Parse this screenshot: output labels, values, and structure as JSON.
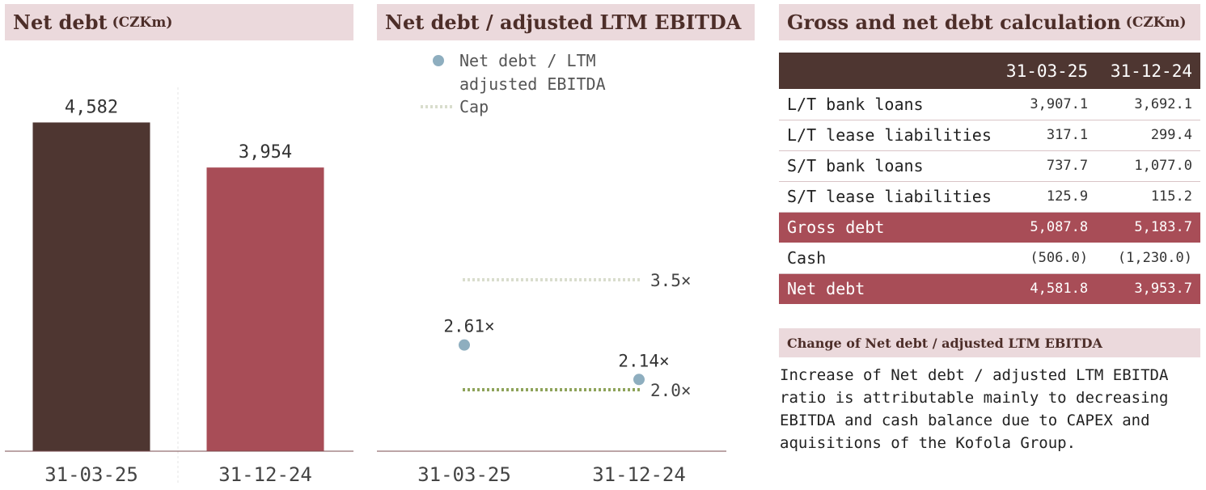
{
  "panels": {
    "net_debt": {
      "title": "Net debt",
      "unit": "(CZKm)"
    },
    "ratio": {
      "title": "Net debt / adjusted LTM EBITDA"
    },
    "calc": {
      "title": "Gross and net debt calculation",
      "unit": "(CZKm)"
    }
  },
  "colors": {
    "header_bg": "#ebd9dc",
    "header_text": "#4d2e29",
    "bar_dark": "#4e3631",
    "bar_red": "#a84d57",
    "point_blue": "#8eaebf",
    "cap_green": "#8ea35a",
    "cap_light": "#d9ddcd"
  },
  "chart_data": [
    {
      "type": "bar",
      "title": "Net debt (CZKm)",
      "categories": [
        "31-03-25",
        "31-12-24"
      ],
      "values": [
        4582,
        3954
      ],
      "data_labels": [
        "4,582",
        "3,954"
      ],
      "ylim": [
        0,
        5500
      ]
    },
    {
      "type": "scatter",
      "title": "Net debt / adjusted LTM EBITDA",
      "categories": [
        "31-03-25",
        "31-12-24"
      ],
      "series": [
        {
          "name": "Net debt / LTM adjusted EBITDA",
          "values": [
            2.61,
            2.14
          ],
          "labels": [
            "2.61×",
            "2.14×"
          ]
        }
      ],
      "caps": [
        {
          "name": "Cap",
          "value": 3.5,
          "label": "3.5×"
        },
        {
          "value": 2.0,
          "label": "2.0×"
        }
      ],
      "legend": [
        "Net debt / LTM",
        "adjusted EBITDA",
        "Cap"
      ],
      "legend_position": "top-left",
      "ylim": [
        1.0,
        5.0
      ]
    }
  ],
  "table": {
    "columns": [
      "",
      "31-03-25",
      "31-12-24"
    ],
    "rows": [
      {
        "label": "L/T bank loans",
        "a": "3,907.1",
        "b": "3,692.1",
        "highlight": false
      },
      {
        "label": "L/T lease liabilities",
        "a": "317.1",
        "b": "299.4",
        "highlight": false
      },
      {
        "label": "S/T bank loans",
        "a": "737.7",
        "b": "1,077.0",
        "highlight": false
      },
      {
        "label": "S/T lease liabilities",
        "a": "125.9",
        "b": "115.2",
        "highlight": false
      },
      {
        "label": "Gross debt",
        "a": "5,087.8",
        "b": "5,183.7",
        "highlight": true
      },
      {
        "label": "Cash",
        "a": "(506.0)",
        "b": "(1,230.0)",
        "highlight": false
      },
      {
        "label": "Net debt",
        "a": "4,581.8",
        "b": "3,953.7",
        "highlight": true
      }
    ]
  },
  "change": {
    "title": "Change of Net debt / adjusted LTM EBITDA",
    "lines": [
      "Increase of Net debt / adjusted LTM EBITDA",
      "ratio is attributable mainly to decreasing",
      "EBITDA and cash balance due to CAPEX and",
      "aquisitions of the Kofola Group."
    ]
  }
}
